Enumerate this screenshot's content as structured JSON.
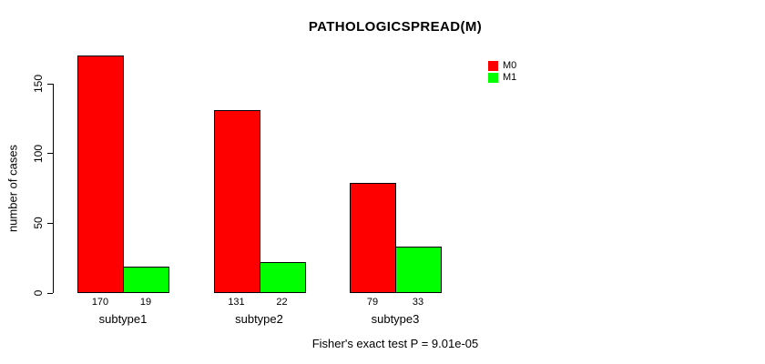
{
  "chart_data": {
    "type": "bar",
    "title": "PATHOLOGICSPREAD(M)",
    "ylabel": "number of cases",
    "xlabel": "",
    "categories": [
      "subtype1",
      "subtype2",
      "subtype3"
    ],
    "series": [
      {
        "name": "M0",
        "color": "#FF0000",
        "values": [
          170,
          131,
          79
        ]
      },
      {
        "name": "M1",
        "color": "#00FF00",
        "values": [
          19,
          22,
          33
        ]
      }
    ],
    "yticks": [
      0,
      50,
      100,
      150
    ],
    "ylim": [
      0,
      172
    ],
    "grid": false,
    "legend_position": "top-right",
    "bar_value_labels": [
      [
        "170",
        "19"
      ],
      [
        "131",
        "22"
      ],
      [
        "79",
        "33"
      ]
    ],
    "annotation": "Fisher's exact test P = 9.01e-05"
  }
}
